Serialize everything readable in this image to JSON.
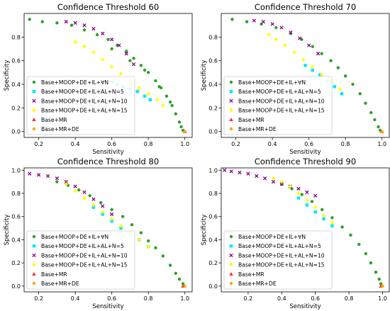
{
  "chart_data": [
    {
      "type": "scatter",
      "title": "Confidence Threshold 60",
      "xlabel": "Sensitivity",
      "ylabel": "Specificity",
      "xlim": [
        0.12,
        1.04
      ],
      "ylim": [
        -0.05,
        1.0
      ],
      "xticks": [
        0.2,
        0.4,
        0.6,
        0.8,
        1.0
      ],
      "yticks": [
        0.0,
        0.2,
        0.4,
        0.6,
        0.8
      ],
      "xtick_labels": [
        "0.2",
        "0.4",
        "0.6",
        "0.8",
        "1.0"
      ],
      "ytick_labels": [
        "0.0",
        "0.2",
        "0.4",
        "0.6",
        "0.8"
      ],
      "legend_position": "lower-left",
      "series": [
        {
          "name": "Base+MOOP+DE+IL+∀N",
          "marker": "circle",
          "color": "#2ca02c",
          "x": [
            0.15,
            0.22,
            0.3,
            0.38,
            0.45,
            0.52,
            0.58,
            0.63,
            0.68,
            0.72,
            0.76,
            0.8,
            0.84,
            0.87,
            0.9,
            0.93,
            0.95,
            0.97,
            0.98,
            0.99,
            0.6,
            0.7,
            0.78,
            0.86,
            0.92
          ],
          "y": [
            0.95,
            0.93,
            0.92,
            0.9,
            0.86,
            0.82,
            0.78,
            0.73,
            0.68,
            0.62,
            0.56,
            0.5,
            0.43,
            0.37,
            0.3,
            0.22,
            0.15,
            0.08,
            0.04,
            0.01,
            0.7,
            0.6,
            0.52,
            0.38,
            0.25
          ]
        },
        {
          "name": "Base+MOOP+DE+IL+AL+N=5",
          "marker": "square",
          "color": "#00e5ff",
          "x": [
            0.6,
            0.63,
            0.66,
            0.7,
            0.74,
            0.78,
            0.81
          ],
          "y": [
            0.42,
            0.4,
            0.38,
            0.36,
            0.34,
            0.3,
            0.27
          ]
        },
        {
          "name": "Base+MOOP+DE+IL+AL+N=10",
          "marker": "x",
          "color": "#8b008b",
          "x": [
            0.35,
            0.4,
            0.45,
            0.5,
            0.55,
            0.6,
            0.64,
            0.68,
            0.72
          ],
          "y": [
            0.93,
            0.92,
            0.9,
            0.87,
            0.83,
            0.78,
            0.73,
            0.66,
            0.57
          ]
        },
        {
          "name": "Base+MOOP+DE+IL+AL+N=15",
          "marker": "diamond",
          "color": "#ffff00",
          "x": [
            0.4,
            0.45,
            0.5,
            0.55,
            0.6,
            0.65,
            0.7,
            0.75,
            0.8,
            0.85,
            0.88
          ],
          "y": [
            0.76,
            0.72,
            0.67,
            0.61,
            0.55,
            0.49,
            0.43,
            0.37,
            0.32,
            0.27,
            0.22
          ]
        },
        {
          "name": "Base+MR",
          "marker": "triangle",
          "color": "#ff3030",
          "x": [
            1.0
          ],
          "y": [
            0.0
          ]
        },
        {
          "name": "Base+MR+DE",
          "marker": "circle",
          "color": "#ffa500",
          "x": [
            1.0
          ],
          "y": [
            0.0
          ]
        }
      ]
    },
    {
      "type": "scatter",
      "title": "Confidence Threshold 70",
      "xlabel": "Sensitivity",
      "ylabel": "Specificity",
      "xlim": [
        0.12,
        1.04
      ],
      "ylim": [
        -0.05,
        1.0
      ],
      "xticks": [
        0.2,
        0.4,
        0.6,
        0.8,
        1.0
      ],
      "yticks": [
        0.0,
        0.2,
        0.4,
        0.6,
        0.8
      ],
      "xtick_labels": [
        "0.2",
        "0.4",
        "0.6",
        "0.8",
        "1.0"
      ],
      "ytick_labels": [
        "0.0",
        "0.2",
        "0.4",
        "0.6",
        "0.8"
      ],
      "legend_position": "lower-left",
      "series": [
        {
          "name": "Base+MOOP+DE+IL+∀N",
          "marker": "circle",
          "color": "#2ca02c",
          "x": [
            0.18,
            0.26,
            0.34,
            0.42,
            0.5,
            0.56,
            0.62,
            0.67,
            0.72,
            0.76,
            0.8,
            0.84,
            0.88,
            0.91,
            0.94,
            0.96,
            0.98,
            0.99
          ],
          "y": [
            0.95,
            0.93,
            0.91,
            0.88,
            0.83,
            0.78,
            0.72,
            0.66,
            0.6,
            0.54,
            0.47,
            0.4,
            0.32,
            0.24,
            0.16,
            0.1,
            0.04,
            0.01
          ]
        },
        {
          "name": "Base+MOOP+DE+IL+AL+N=5",
          "marker": "square",
          "color": "#00e5ff",
          "x": [
            0.58,
            0.62,
            0.66,
            0.7,
            0.74,
            0.78
          ],
          "y": [
            0.56,
            0.52,
            0.48,
            0.43,
            0.38,
            0.32
          ]
        },
        {
          "name": "Base+MOOP+DE+IL+AL+N=10",
          "marker": "x",
          "color": "#8b008b",
          "x": [
            0.3,
            0.35,
            0.4,
            0.45,
            0.5,
            0.55,
            0.6,
            0.65
          ],
          "y": [
            0.94,
            0.93,
            0.91,
            0.88,
            0.84,
            0.79,
            0.73,
            0.66
          ]
        },
        {
          "name": "Base+MOOP+DE+IL+AL+N=15",
          "marker": "diamond",
          "color": "#ffff00",
          "x": [
            0.38,
            0.42,
            0.47,
            0.52,
            0.57,
            0.62,
            0.67,
            0.72,
            0.77
          ],
          "y": [
            0.82,
            0.78,
            0.73,
            0.67,
            0.61,
            0.55,
            0.48,
            0.42,
            0.36
          ]
        },
        {
          "name": "Base+MR",
          "marker": "triangle",
          "color": "#ff3030",
          "x": [
            1.0
          ],
          "y": [
            0.0
          ]
        },
        {
          "name": "Base+MR+DE",
          "marker": "circle",
          "color": "#ffa500",
          "x": [
            1.0
          ],
          "y": [
            0.0
          ]
        }
      ]
    },
    {
      "type": "scatter",
      "title": "Confidence Threshold 80",
      "xlabel": "Sensitivity",
      "ylabel": "Specificity",
      "xlim": [
        0.12,
        1.04
      ],
      "ylim": [
        -0.05,
        1.02
      ],
      "xticks": [
        0.2,
        0.4,
        0.6,
        0.8,
        1.0
      ],
      "yticks": [
        0.0,
        0.2,
        0.4,
        0.6,
        0.8,
        1.0
      ],
      "xtick_labels": [
        "0.2",
        "0.4",
        "0.6",
        "0.8",
        "1.0"
      ],
      "ytick_labels": [
        "0.0",
        "0.2",
        "0.4",
        "0.6",
        "0.8",
        "1.0"
      ],
      "legend_position": "lower-left",
      "series": [
        {
          "name": "Base+MOOP+DE+IL+∀N",
          "marker": "circle",
          "color": "#2ca02c",
          "x": [
            0.3,
            0.36,
            0.42,
            0.48,
            0.54,
            0.6,
            0.66,
            0.71,
            0.76,
            0.8,
            0.84,
            0.88,
            0.92,
            0.95,
            0.97,
            0.99
          ],
          "y": [
            0.9,
            0.87,
            0.83,
            0.78,
            0.72,
            0.66,
            0.6,
            0.53,
            0.46,
            0.39,
            0.33,
            0.26,
            0.18,
            0.11,
            0.06,
            0.02
          ]
        },
        {
          "name": "Base+MOOP+DE+IL+AL+N=5",
          "marker": "square",
          "color": "#00e5ff",
          "x": [
            0.5,
            0.55,
            0.6,
            0.65,
            0.7,
            0.75,
            0.8
          ],
          "y": [
            0.68,
            0.62,
            0.56,
            0.5,
            0.45,
            0.4,
            0.34
          ]
        },
        {
          "name": "Base+MOOP+DE+IL+AL+N=10",
          "marker": "x",
          "color": "#8b008b",
          "x": [
            0.15,
            0.2,
            0.25,
            0.3,
            0.35,
            0.4,
            0.45,
            0.5,
            0.55,
            0.6
          ],
          "y": [
            0.97,
            0.96,
            0.95,
            0.93,
            0.9,
            0.86,
            0.81,
            0.75,
            0.69,
            0.62
          ]
        },
        {
          "name": "Base+MOOP+DE+IL+AL+N=15",
          "marker": "diamond",
          "color": "#ffff00",
          "x": [
            0.35,
            0.4,
            0.45,
            0.5,
            0.55,
            0.6,
            0.65,
            0.7,
            0.75,
            0.8
          ],
          "y": [
            0.88,
            0.82,
            0.76,
            0.7,
            0.64,
            0.58,
            0.52,
            0.46,
            0.4,
            0.34
          ]
        },
        {
          "name": "Base+MR",
          "marker": "triangle",
          "color": "#ff3030",
          "x": [
            0.99
          ],
          "y": [
            0.0
          ]
        },
        {
          "name": "Base+MR+DE",
          "marker": "circle",
          "color": "#ffa500",
          "x": [
            1.0
          ],
          "y": [
            0.0
          ]
        }
      ]
    },
    {
      "type": "scatter",
      "title": "Confidence Threshold 90",
      "xlabel": "Sensitivity",
      "ylabel": "Specificity",
      "xlim": [
        0.04,
        1.04
      ],
      "ylim": [
        -0.05,
        1.02
      ],
      "xticks": [
        0.2,
        0.4,
        0.6,
        0.8,
        1.0
      ],
      "yticks": [
        0.0,
        0.2,
        0.4,
        0.6,
        0.8,
        1.0
      ],
      "xtick_labels": [
        "0.2",
        "0.4",
        "0.6",
        "0.8",
        "1.0"
      ],
      "ytick_labels": [
        "0.0",
        "0.2",
        "0.4",
        "0.6",
        "0.8",
        "1.0"
      ],
      "legend_position": "lower-left",
      "series": [
        {
          "name": "Base+MOOP+DE+IL+∀N",
          "marker": "circle",
          "color": "#2ca02c",
          "x": [
            0.4,
            0.46,
            0.52,
            0.58,
            0.64,
            0.7,
            0.76,
            0.81,
            0.86,
            0.9,
            0.93,
            0.96,
            0.98,
            0.99
          ],
          "y": [
            0.88,
            0.84,
            0.79,
            0.73,
            0.66,
            0.59,
            0.51,
            0.44,
            0.36,
            0.28,
            0.2,
            0.12,
            0.06,
            0.02
          ]
        },
        {
          "name": "Base+MOOP+DE+IL+AL+N=5",
          "marker": "square",
          "color": "#00e5ff",
          "x": [
            0.5,
            0.55,
            0.6,
            0.65,
            0.7
          ],
          "y": [
            0.76,
            0.7,
            0.64,
            0.58,
            0.52
          ]
        },
        {
          "name": "Base+MOOP+DE+IL+AL+N=10",
          "marker": "x",
          "color": "#8b008b",
          "x": [
            0.06,
            0.1,
            0.15,
            0.2,
            0.25,
            0.3,
            0.35,
            0.4,
            0.45,
            0.5,
            0.55,
            0.6
          ],
          "y": [
            1.0,
            0.99,
            0.98,
            0.97,
            0.95,
            0.93,
            0.9,
            0.88,
            0.86,
            0.84,
            0.81,
            0.78
          ]
        },
        {
          "name": "Base+MOOP+DE+IL+AL+N=15",
          "marker": "diamond",
          "color": "#ffff00",
          "x": [
            0.35,
            0.4,
            0.45,
            0.5,
            0.55,
            0.6,
            0.65,
            0.7
          ],
          "y": [
            0.93,
            0.9,
            0.86,
            0.8,
            0.74,
            0.68,
            0.61,
            0.55
          ]
        },
        {
          "name": "Base+MR",
          "marker": "triangle",
          "color": "#ff3030",
          "x": [
            0.99
          ],
          "y": [
            0.0
          ]
        },
        {
          "name": "Base+MR+DE",
          "marker": "circle",
          "color": "#ffa500",
          "x": [
            1.0
          ],
          "y": [
            0.0
          ]
        }
      ]
    }
  ]
}
